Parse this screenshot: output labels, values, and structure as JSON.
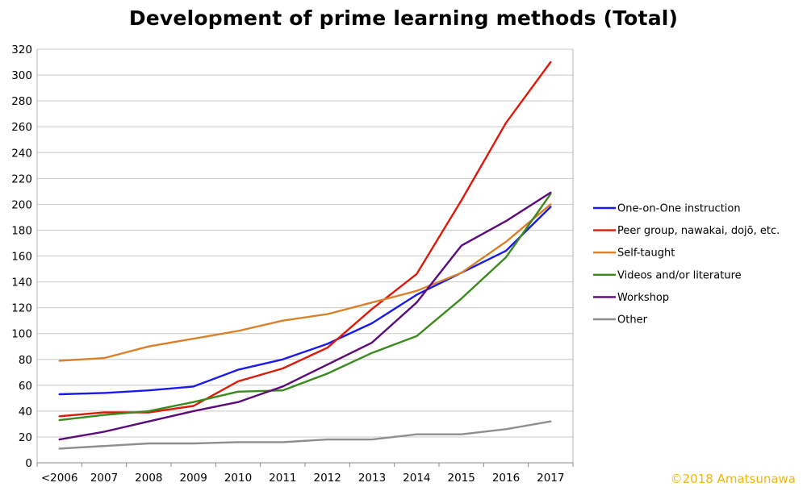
{
  "chart_data": {
    "type": "line",
    "title": "Development of prime learning methods (Total)",
    "xlabel": "",
    "ylabel": "",
    "categories": [
      "<2006",
      "2007",
      "2008",
      "2009",
      "2010",
      "2011",
      "2012",
      "2013",
      "2014",
      "2015",
      "2016",
      "2017"
    ],
    "ylim": [
      0,
      320
    ],
    "yticks": [
      0,
      20,
      40,
      60,
      80,
      100,
      120,
      140,
      160,
      180,
      200,
      220,
      240,
      260,
      280,
      300,
      320
    ],
    "grid": "horizontal",
    "legend_position": "right",
    "series": [
      {
        "name": "One-on-One instruction",
        "color": "#1a1aee",
        "values": [
          53,
          54,
          56,
          59,
          72,
          80,
          92,
          108,
          130,
          147,
          164,
          198
        ]
      },
      {
        "name": "Peer group, nawakai, dojō, etc.",
        "color": "#dd1a0a",
        "values": [
          36,
          39,
          39,
          44,
          63,
          73,
          89,
          119,
          146,
          203,
          263,
          310
        ]
      },
      {
        "name": "Self-taught",
        "color": "#d8812a",
        "values": [
          79,
          81,
          90,
          96,
          102,
          110,
          115,
          124,
          133,
          147,
          171,
          200
        ]
      },
      {
        "name": "Videos and/or literature",
        "color": "#3a8a1e",
        "values": [
          33,
          37,
          40,
          47,
          55,
          56,
          69,
          85,
          98,
          127,
          159,
          208
        ]
      },
      {
        "name": "Workshop",
        "color": "#5c0a7a",
        "values": [
          18,
          24,
          32,
          40,
          47,
          59,
          76,
          93,
          124,
          168,
          187,
          209
        ]
      },
      {
        "name": "Other",
        "color": "#8e8e8e",
        "values": [
          11,
          13,
          15,
          15,
          16,
          16,
          18,
          18,
          22,
          22,
          26,
          32
        ]
      }
    ]
  },
  "copyright": "©2018 Amatsunawa"
}
